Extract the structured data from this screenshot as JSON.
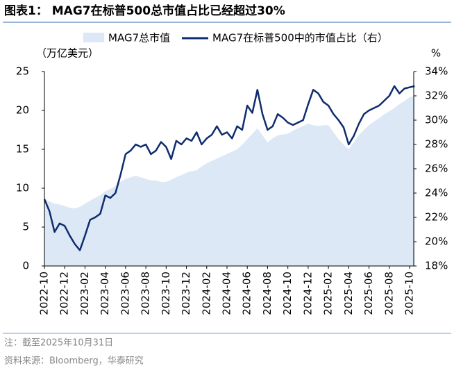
{
  "chart_data": {
    "type": "area_line",
    "title": "图表1：  MAG7在标普500总市值占比已经超过30%",
    "y_axis_label": "（万亿美元）",
    "y2_axis_label": "%",
    "categories": [
      "2022-10",
      null,
      null,
      null,
      "2022-12",
      null,
      null,
      null,
      "2023-02",
      null,
      null,
      null,
      "2023-04",
      null,
      null,
      null,
      "2023-06",
      null,
      null,
      null,
      "2023-08",
      null,
      null,
      null,
      "2023-10",
      null,
      null,
      null,
      "2023-12",
      null,
      null,
      null,
      "2024-02",
      null,
      null,
      null,
      "2024-04",
      null,
      null,
      null,
      "2024-06",
      null,
      null,
      null,
      "2024-08",
      null,
      null,
      null,
      "2024-10",
      null,
      null,
      null,
      "2024-12",
      null,
      null,
      null,
      "2025-02",
      null,
      null,
      null,
      "2025-04",
      null,
      null,
      null,
      "2025-06",
      null,
      null,
      null,
      "2025-08",
      null,
      null,
      null,
      "2025-10",
      null
    ],
    "series": [
      {
        "name": "MAG7总市值",
        "color": "#dce8f5",
        "axis": "y",
        "values": [
          8.6,
          8.3,
          8.0,
          7.9,
          7.7,
          7.5,
          7.4,
          7.6,
          8.0,
          8.4,
          8.75,
          9.1,
          9.6,
          9.9,
          10.3,
          10.8,
          11.2,
          11.4,
          11.6,
          11.4,
          11.2,
          11.0,
          11.0,
          10.8,
          10.8,
          11.1,
          11.4,
          11.7,
          12.0,
          12.2,
          12.3,
          12.8,
          13.2,
          13.5,
          13.8,
          14.1,
          14.4,
          14.7,
          15.0,
          15.6,
          16.3,
          17.0,
          17.7,
          16.8,
          15.9,
          16.4,
          16.8,
          16.9,
          17.0,
          17.4,
          17.7,
          18.0,
          18.3,
          18.1,
          18.0,
          18.1,
          18.1,
          17.2,
          16.3,
          15.6,
          15.0,
          15.9,
          16.8,
          17.5,
          18.1,
          18.6,
          19.0,
          19.5,
          19.9,
          20.3,
          20.8,
          21.2,
          21.7,
          21.9
        ]
      },
      {
        "name": "MAG7在标普500中的市值占比（右）",
        "color": "#0e2c6e",
        "axis": "y2",
        "values": [
          23.5,
          22.5,
          20.8,
          21.5,
          21.3,
          20.5,
          19.8,
          19.3,
          20.5,
          21.8,
          22.0,
          22.3,
          23.8,
          23.6,
          24.0,
          25.5,
          27.2,
          27.5,
          28.0,
          27.8,
          28.0,
          27.2,
          27.5,
          28.2,
          27.8,
          26.8,
          28.3,
          28.0,
          28.5,
          28.3,
          29.0,
          28.0,
          28.5,
          28.8,
          29.5,
          28.8,
          29.0,
          28.5,
          29.5,
          29.2,
          31.2,
          30.6,
          32.5,
          30.5,
          29.2,
          29.5,
          30.5,
          30.2,
          29.8,
          29.6,
          29.8,
          30.0,
          31.3,
          32.5,
          32.2,
          31.5,
          31.2,
          30.5,
          30.0,
          29.4,
          28.0,
          28.7,
          29.7,
          30.5,
          30.8,
          31.0,
          31.2,
          31.6,
          32.0,
          32.8,
          32.2,
          32.6,
          32.7,
          32.8
        ]
      }
    ],
    "ylim": [
      0,
      25
    ],
    "yticks": [
      0,
      5,
      10,
      15,
      20,
      25
    ],
    "y2lim": [
      18,
      34
    ],
    "y2ticks": [
      {
        "value": 18,
        "label": "18%"
      },
      {
        "value": 20,
        "label": "20%"
      },
      {
        "value": 22,
        "label": "22%"
      },
      {
        "value": 24,
        "label": "24%"
      },
      {
        "value": 26,
        "label": "26%"
      },
      {
        "value": 28,
        "label": "28%"
      },
      {
        "value": 30,
        "label": "30%"
      },
      {
        "value": 32,
        "label": "32%"
      },
      {
        "value": 34,
        "label": "34%"
      }
    ],
    "notes": [
      "注：截至2025年10月31日",
      "资料来源：Bloomberg，华泰研究"
    ]
  }
}
